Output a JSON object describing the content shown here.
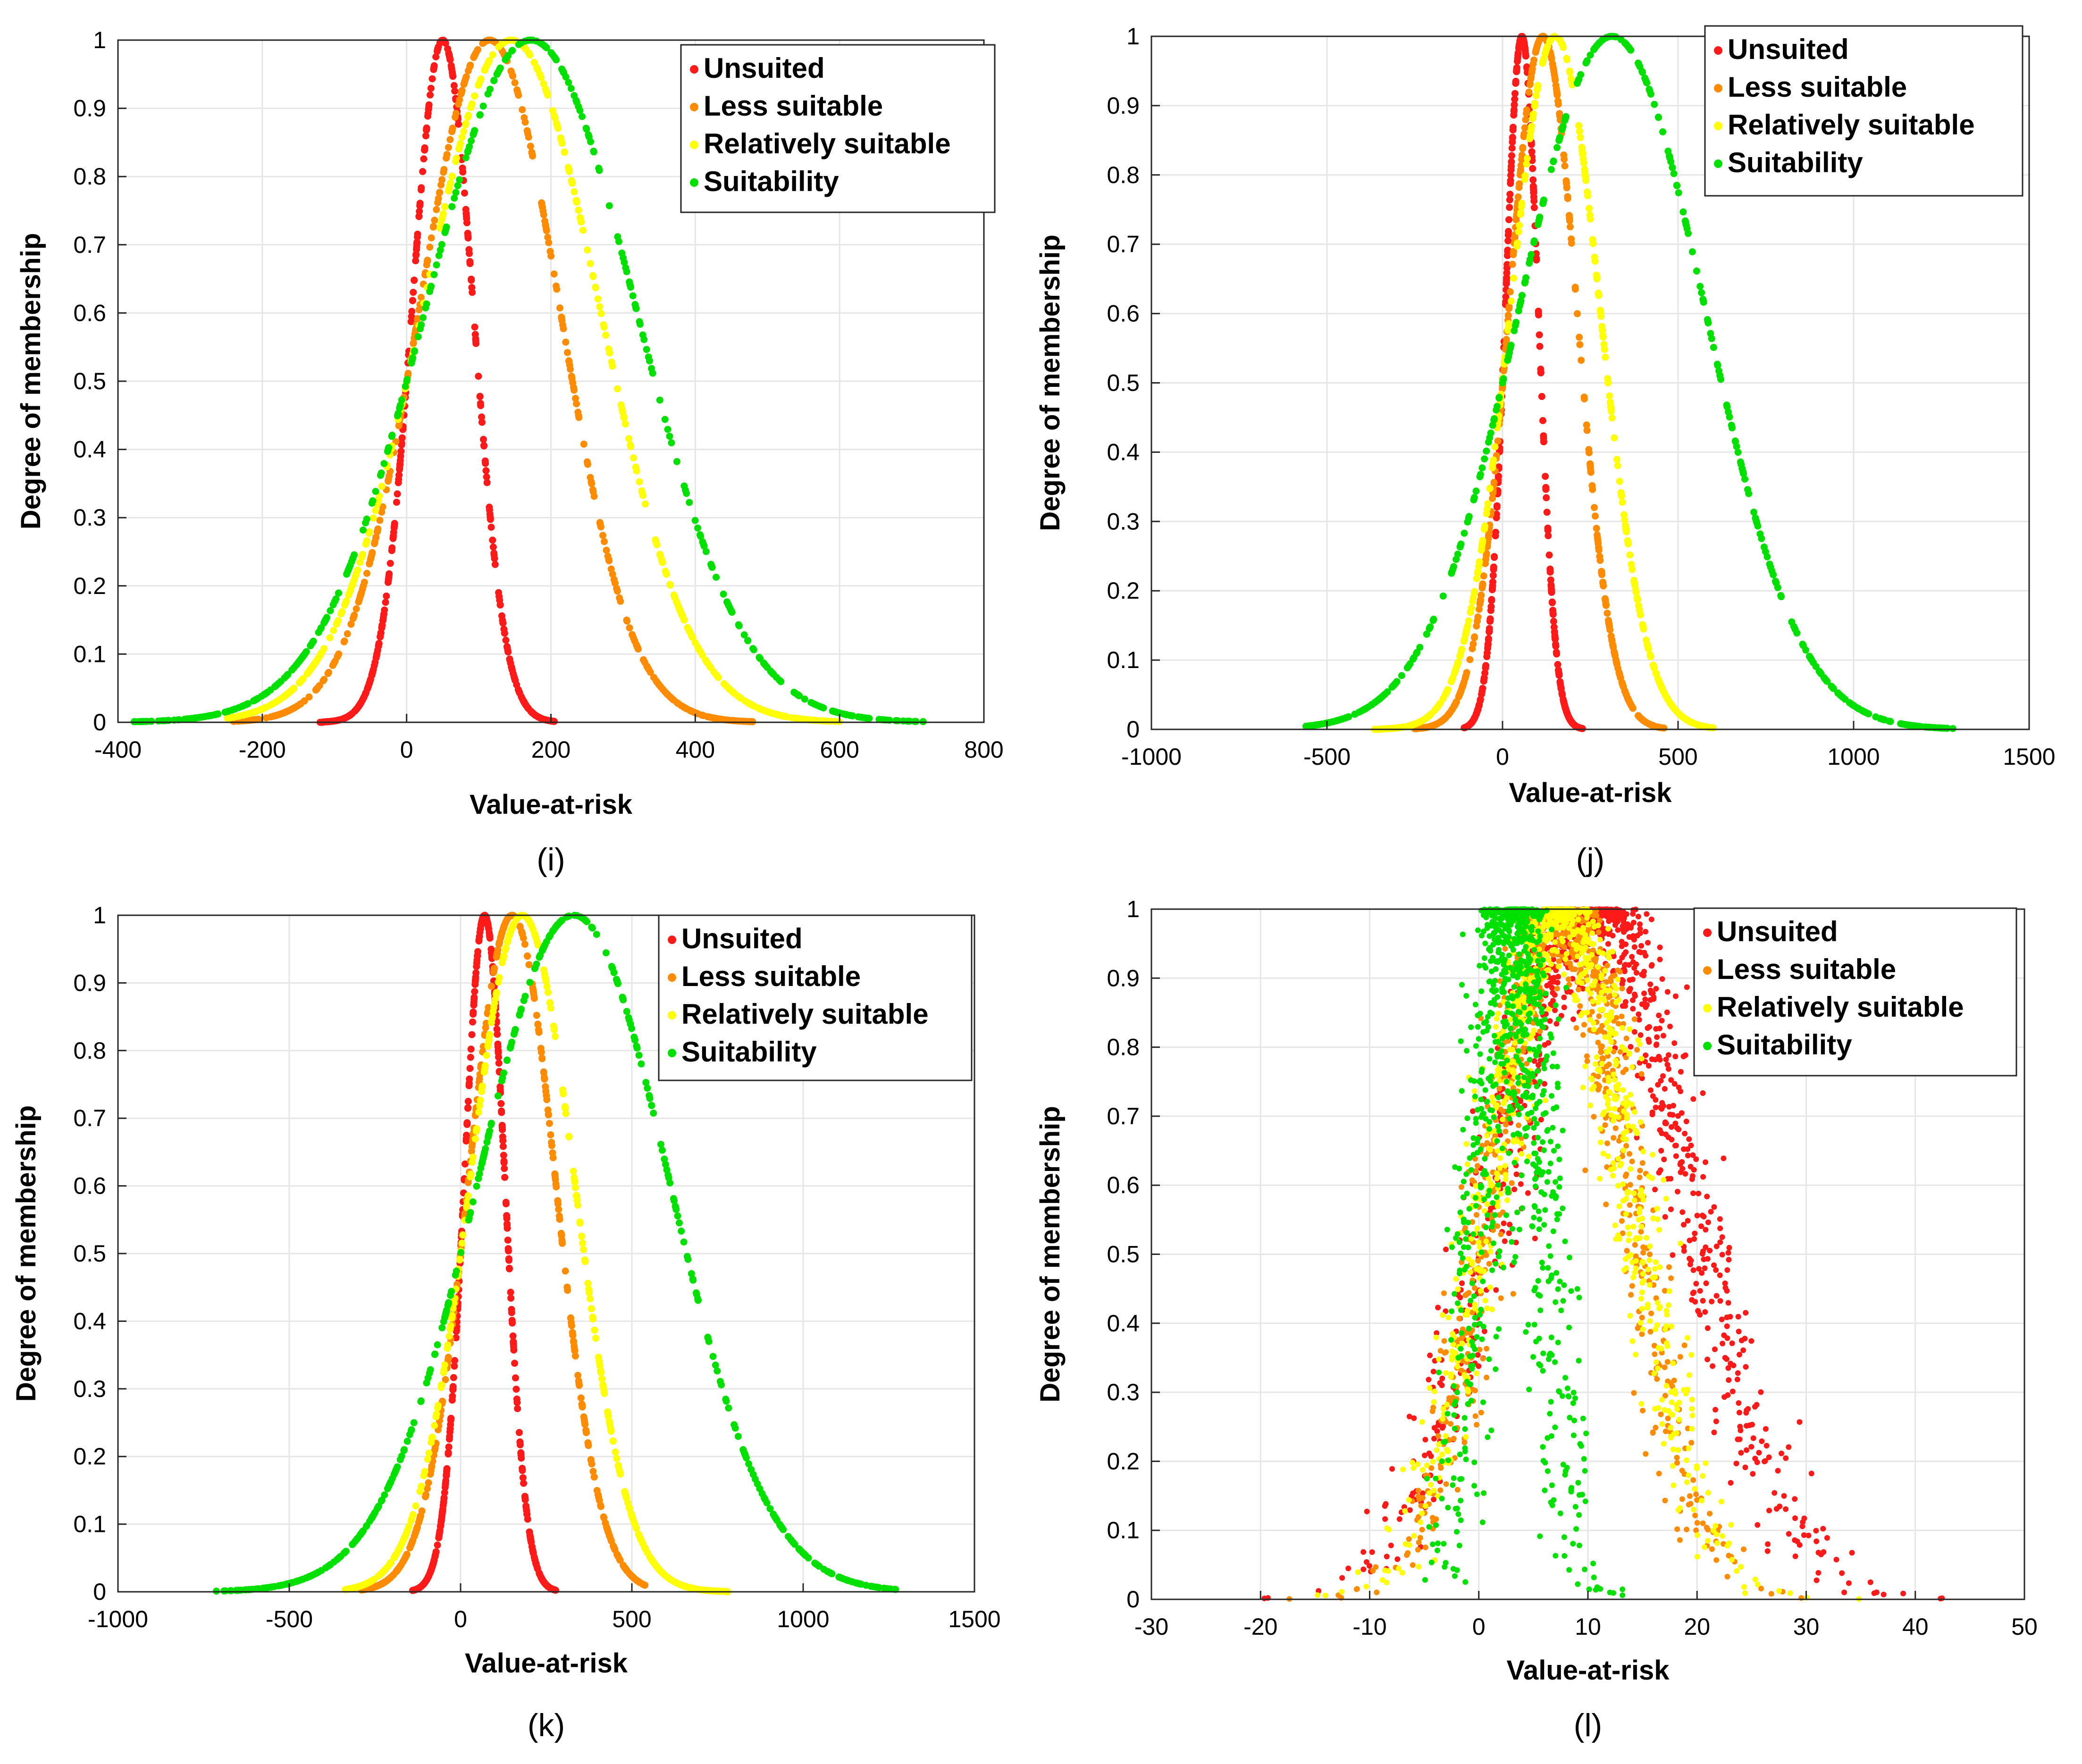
{
  "colors": {
    "unsuited": "#ff1a1a",
    "less_suitable": "#ff8c00",
    "relatively_suitable": "#ffff00",
    "suitability": "#00e000",
    "grid": "#e6e6e6",
    "axis": "#262626"
  },
  "chart_data": [
    {
      "panel_label": "(i)",
      "type": "scatter",
      "xlabel": "Value-at-risk",
      "ylabel": "Degree of membership",
      "xlim": [
        -400,
        800
      ],
      "ylim": [
        0,
        1
      ],
      "xticks": [
        "-400",
        "-200",
        "0",
        "200",
        "400",
        "600",
        "800"
      ],
      "yticks": [
        "0",
        "0.1",
        "0.2",
        "0.3",
        "0.4",
        "0.5",
        "0.6",
        "0.7",
        "0.8",
        "0.9",
        "1"
      ],
      "grid": true,
      "legend_position": "top-right",
      "series": [
        {
          "name": "Unsuited",
          "color": "#ff1a1a",
          "mu": 50,
          "sigma": 42.5,
          "xmin": -120,
          "xmax": 205,
          "noise": 0
        },
        {
          "name": "Less suitable",
          "color": "#ff8c00",
          "mu": 115,
          "sigma": 97.5,
          "xmin": -240,
          "xmax": 480,
          "noise": 0
        },
        {
          "name": "Relatively suitable",
          "color": "#ffff00",
          "mu": 145,
          "sigma": 123,
          "xmin": -250,
          "xmax": 600,
          "noise": 0
        },
        {
          "name": "Suitability",
          "color": "#00e000",
          "mu": 172,
          "sigma": 146,
          "xmin": -385,
          "xmax": 730,
          "noise": 0
        }
      ]
    },
    {
      "panel_label": "(j)",
      "type": "scatter",
      "xlabel": "Value-at-risk",
      "ylabel": "Degree of membership",
      "xlim": [
        -1000,
        1500
      ],
      "ylim": [
        0,
        1
      ],
      "xticks": [
        "-1000",
        "-500",
        "0",
        "500",
        "1000",
        "1500"
      ],
      "yticks": [
        "0",
        "0.1",
        "0.2",
        "0.3",
        "0.4",
        "0.5",
        "0.6",
        "0.7",
        "0.8",
        "0.9",
        "1"
      ],
      "grid": true,
      "legend_position": "top-right",
      "series": [
        {
          "name": "Unsuited",
          "color": "#ff1a1a",
          "mu": 55,
          "sigma": 47,
          "xmin": -110,
          "xmax": 230,
          "noise": 0
        },
        {
          "name": "Less suitable",
          "color": "#ff8c00",
          "mu": 115,
          "sigma": 97,
          "xmin": -250,
          "xmax": 460,
          "noise": 0
        },
        {
          "name": "Relatively suitable",
          "color": "#ffff00",
          "mu": 150,
          "sigma": 128,
          "xmin": -370,
          "xmax": 600,
          "noise": 0
        },
        {
          "name": "Suitability",
          "color": "#00e000",
          "mu": 312,
          "sigma": 265,
          "xmin": -560,
          "xmax": 1290,
          "noise": 0
        }
      ]
    },
    {
      "panel_label": "(k)",
      "type": "scatter",
      "xlabel": "Value-at-risk",
      "ylabel": "Degree of membership",
      "xlim": [
        -1000,
        1500
      ],
      "ylim": [
        0,
        1
      ],
      "xticks": [
        "-1000",
        "-500",
        "0",
        "500",
        "1000",
        "1500"
      ],
      "yticks": [
        "0",
        "0.1",
        "0.2",
        "0.3",
        "0.4",
        "0.5",
        "0.6",
        "0.7",
        "0.8",
        "0.9",
        "1"
      ],
      "grid": true,
      "legend_position": "top-right",
      "series": [
        {
          "name": "Unsuited",
          "color": "#ff1a1a",
          "mu": 70,
          "sigma": 59.5,
          "xmin": -140,
          "xmax": 280,
          "noise": 0
        },
        {
          "name": "Less suitable",
          "color": "#ff8c00",
          "mu": 150,
          "sigma": 127.5,
          "xmin": -290,
          "xmax": 540,
          "noise": 0
        },
        {
          "name": "Relatively suitable",
          "color": "#ffff00",
          "mu": 180,
          "sigma": 153,
          "xmin": -340,
          "xmax": 780,
          "noise": 0
        },
        {
          "name": "Suitability",
          "color": "#00e000",
          "mu": 330,
          "sigma": 280,
          "xmin": -730,
          "xmax": 1270,
          "noise": 0
        }
      ]
    },
    {
      "panel_label": "(l)",
      "type": "scatter",
      "xlabel": "Value-at-risk",
      "ylabel": "Degree of membership",
      "xlim": [
        -30,
        50
      ],
      "ylim": [
        0,
        1
      ],
      "xticks": [
        "-30",
        "-20",
        "-10",
        "0",
        "10",
        "20",
        "30",
        "40",
        "50"
      ],
      "yticks": [
        "0",
        "0.1",
        "0.2",
        "0.3",
        "0.4",
        "0.5",
        "0.6",
        "0.7",
        "0.8",
        "0.9",
        "1"
      ],
      "grid": true,
      "legend_position": "top-right",
      "series": [
        {
          "name": "Unsuited",
          "color": "#ff1a1a",
          "mu": 10.5,
          "sigma": 8.5,
          "xmin": -23,
          "xmax": 42,
          "noise": 1.5
        },
        {
          "name": "Less suitable",
          "color": "#ff8c00",
          "mu": 7.5,
          "sigma": 6.2,
          "xmin": -17,
          "xmax": 30,
          "noise": 1.2
        },
        {
          "name": "Relatively suitable",
          "color": "#ffff00",
          "mu": 7.5,
          "sigma": 6.4,
          "xmin": -17,
          "xmax": 35,
          "noise": 1.2
        },
        {
          "name": "Suitability",
          "color": "#00e000",
          "mu": 3,
          "sigma": 2.6,
          "xmin": -5,
          "xmax": 13,
          "noise": 1.3
        }
      ]
    }
  ]
}
